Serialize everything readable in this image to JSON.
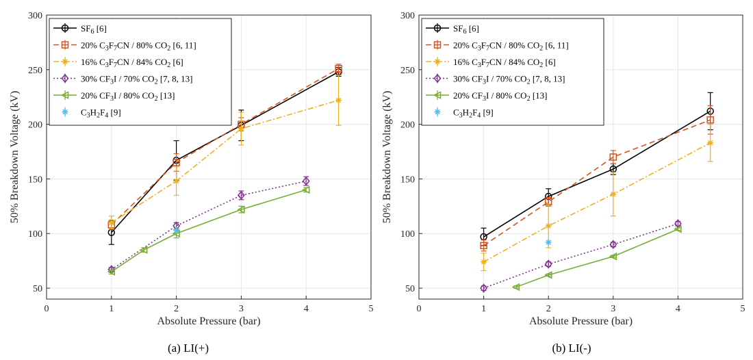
{
  "chart_data": [
    {
      "type": "line",
      "caption": "(a)  LI(+)",
      "xlabel": "Absolute Pressure (bar)",
      "ylabel": "50% Breakdown Voltage (kV)",
      "xlim": [
        0,
        5
      ],
      "ylim": [
        40,
        300
      ],
      "xticks": [
        0,
        1,
        2,
        3,
        4,
        5
      ],
      "yticks": [
        50,
        100,
        150,
        200,
        250,
        300
      ],
      "grid": true,
      "legend_position": "top-left",
      "series": [
        {
          "name": "SF6 [6]",
          "color": "#000000",
          "dash": "solid",
          "marker": "circle",
          "x": [
            1,
            2,
            3,
            4.5
          ],
          "y": [
            101,
            167,
            199,
            248
          ],
          "err": [
            11,
            18,
            14,
            4
          ]
        },
        {
          "name": "20% C3F7CN / 80% CO2 [6, 11]",
          "color": "#d95319",
          "dash": "dash",
          "marker": "square",
          "x": [
            1,
            2,
            3,
            4.5
          ],
          "y": [
            108,
            165,
            200,
            251
          ],
          "err": [
            3,
            8,
            6,
            4
          ]
        },
        {
          "name": "16% C3F7CN / 84% CO2 [6]",
          "color": "#edb120",
          "dash": "dashdot",
          "marker": "star",
          "x": [
            1,
            2,
            3,
            4.5
          ],
          "y": [
            110,
            148,
            196,
            222
          ],
          "err": [
            6,
            13,
            15,
            23
          ]
        },
        {
          "name": "30% CF3I / 70% CO2 [7, 8, 13]",
          "color": "#7e2f8e",
          "dash": "dot",
          "marker": "diamond",
          "x": [
            1,
            2,
            3,
            4
          ],
          "y": [
            67,
            107,
            135,
            148
          ],
          "err": [
            2,
            3,
            4,
            4
          ]
        },
        {
          "name": "20% CF3I / 80% CO2 [13]",
          "color": "#77ac30",
          "dash": "solid",
          "marker": "triangle-left",
          "x": [
            1,
            1.5,
            2,
            3,
            4
          ],
          "y": [
            65,
            85,
            100,
            122,
            140
          ],
          "err": [
            2,
            2,
            4,
            3,
            2
          ]
        },
        {
          "name": "C3H2F4 [9]",
          "color": "#4dbeee",
          "dash": "none",
          "marker": "star",
          "x": [
            2
          ],
          "y": [
            103
          ],
          "err": [
            0
          ]
        }
      ]
    },
    {
      "type": "line",
      "caption": "(b)  LI(-)",
      "xlabel": "Absolute Pressure (bar)",
      "ylabel": "50% Breakdown Voltage (kV)",
      "xlim": [
        0,
        5
      ],
      "ylim": [
        40,
        300
      ],
      "xticks": [
        0,
        1,
        2,
        3,
        4,
        5
      ],
      "yticks": [
        50,
        100,
        150,
        200,
        250,
        300
      ],
      "grid": true,
      "legend_position": "top-left",
      "series": [
        {
          "name": "SF6 [6]",
          "color": "#000000",
          "dash": "solid",
          "marker": "circle",
          "x": [
            1,
            2,
            3,
            4.5
          ],
          "y": [
            97,
            134,
            159,
            212
          ],
          "err": [
            8,
            7,
            5,
            17
          ]
        },
        {
          "name": "20% C3F7CN / 80% CO2 [6, 11]",
          "color": "#d95319",
          "dash": "dash",
          "marker": "square",
          "x": [
            1,
            2,
            3,
            4.5
          ],
          "y": [
            89,
            129,
            170,
            204
          ],
          "err": [
            5,
            4,
            6,
            13
          ]
        },
        {
          "name": "16% C3F7CN / 84% CO2 [6]",
          "color": "#edb120",
          "dash": "dashdot",
          "marker": "star",
          "x": [
            1,
            2,
            3,
            4.5
          ],
          "y": [
            74,
            107,
            136,
            183
          ],
          "err": [
            8,
            20,
            20,
            17
          ]
        },
        {
          "name": "30% CF3I / 70% CO2 [7, 8, 13]",
          "color": "#7e2f8e",
          "dash": "dot",
          "marker": "diamond",
          "x": [
            1,
            2,
            3,
            4
          ],
          "y": [
            50,
            72,
            90,
            109
          ],
          "err": [
            2,
            2,
            2,
            2
          ]
        },
        {
          "name": "20% CF3I / 80% CO2 [13]",
          "color": "#77ac30",
          "dash": "solid",
          "marker": "triangle-left",
          "x": [
            1.5,
            2,
            3,
            4
          ],
          "y": [
            51,
            62,
            79,
            104
          ],
          "err": [
            1,
            1,
            1,
            1
          ]
        },
        {
          "name": "C3H2F4 [9]",
          "color": "#4dbeee",
          "dash": "none",
          "marker": "star",
          "x": [
            2
          ],
          "y": [
            92
          ],
          "err": [
            0
          ]
        }
      ]
    }
  ],
  "legend_labels": [
    {
      "base": "SF",
      "sub1": "6",
      "mid1": " [6]",
      "sub2": "",
      "rest": ""
    },
    {
      "base": "20% C",
      "sub1": "3",
      "mid1": "F",
      "sub2": "7",
      "rest": "CN / 80% CO",
      "sub3": "2",
      "tail": " [6, 11]"
    },
    {
      "base": "16% C",
      "sub1": "3",
      "mid1": "F",
      "sub2": "7",
      "rest": "CN / 84% CO",
      "sub3": "2",
      "tail": " [6]"
    },
    {
      "base": "30% CF",
      "sub1": "3",
      "mid1": "I / 70% CO",
      "sub2": "2",
      "rest": " [7, 8, 13]"
    },
    {
      "base": "20% CF",
      "sub1": "3",
      "mid1": "I / 80% CO",
      "sub2": "2",
      "rest": " [13]"
    },
    {
      "base": "C",
      "sub1": "3",
      "mid1": "H",
      "sub2": "2",
      "rest": "F",
      "sub3": "4",
      "tail": " [9]"
    }
  ]
}
